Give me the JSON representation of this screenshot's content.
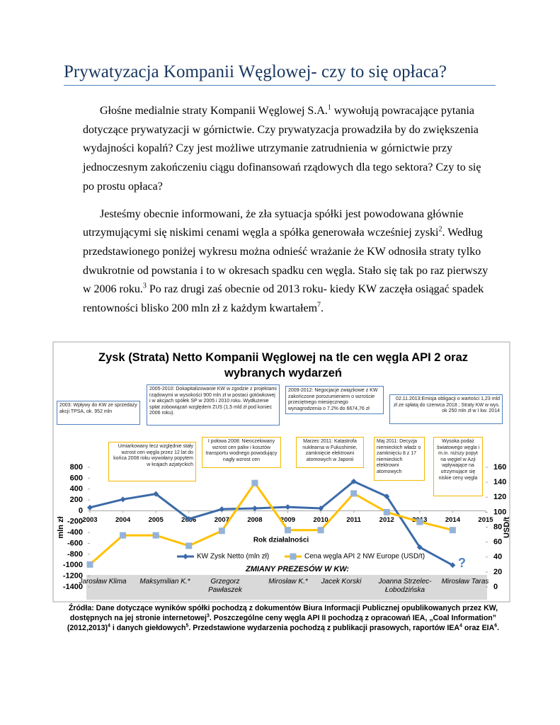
{
  "header": {
    "title": "Prywatyzacja Kompanii Węglowej- czy to się opłaca?"
  },
  "paragraphs": [
    [
      {
        "text": "Głośne medialnie straty Kompanii Węglowej S.A."
      },
      {
        "sup": "1"
      },
      {
        "text": " wywołują powracające pytania dotyczące prywatyzacji w górnictwie. Czy prywatyzacja prowadziła by do zwiększenia wydajności kopalń? Czy jest możliwe utrzymanie zatrudnienia w górnictwie przy jednoczesnym zakończeniu ciągu dofinansowań rządowych dla tego sektora? Czy to się po prostu opłaca?"
      }
    ],
    [
      {
        "text": "Jesteśmy obecnie informowani, że zła sytuacja spółki jest powodowana głównie utrzymującymi się niskimi cenami węgla a spółka generowała wcześniej zyski"
      },
      {
        "sup": "2"
      },
      {
        "text": ". Według przedstawionego poniżej wykresu można  odnieść  wrażanie że KW odnosiła straty tylko dwukrotnie od powstania i to w okresach spadku cen węgla. Stało się tak po raz pierwszy w 2006 roku."
      },
      {
        "sup": "3"
      },
      {
        "text": " Po raz drugi zaś obecnie od 2013 roku- kiedy KW zaczęła osiągać spadek rentowności blisko 200 mln zł z każdym kwartałem"
      },
      {
        "sup": "7"
      },
      {
        "text": "."
      }
    ]
  ],
  "chart_data": {
    "type": "line",
    "title": "Zysk (Strata) Netto Kompanii Węglowej na tle cen węgla API 2 oraz wybranych wydarzeń",
    "x_label": "Rok działalności",
    "y_label": "mln zł",
    "y2_label": "USD/t",
    "x": [
      2003,
      2004,
      2005,
      2006,
      2007,
      2008,
      2009,
      2010,
      2011,
      2012,
      2013,
      2014
    ],
    "xlim": [
      2003,
      2015
    ],
    "xticks": [
      2003,
      2004,
      2005,
      2006,
      2007,
      2008,
      2009,
      2010,
      2011,
      2012,
      2013,
      2014,
      2015
    ],
    "ylim": [
      -1400,
      800
    ],
    "yticks": [
      -1400,
      -1200,
      -1000,
      -800,
      -600,
      -400,
      -200,
      0,
      200,
      400,
      600,
      800
    ],
    "y2lim": [
      0,
      160
    ],
    "y2ticks": [
      0,
      20,
      40,
      60,
      80,
      100,
      120,
      140,
      160
    ],
    "series": [
      {
        "name": "KW Zysk Netto (mln zł)",
        "color": "#3c6aa8",
        "marker_color": "#3c6aa8",
        "values": [
          60,
          210,
          310,
          -150,
          30,
          45,
          70,
          45,
          540,
          265,
          -670,
          -1000
        ]
      },
      {
        "name": "Cena węgla API 2 NW Europe (USD/t)",
        "color": "#ffc000",
        "marker_color": "#95b3d7",
        "axis": "y2",
        "values": [
          30,
          69,
          69,
          55,
          75,
          139,
          76,
          76,
          125,
          100,
          87,
          76
        ]
      }
    ],
    "note": "?",
    "annotations": [
      {
        "text": "2003: Wpływy  do KW ze sprzedaży akcji TPSA, ok. 952 mln",
        "color": "#4f81bd"
      },
      {
        "text": "2005-2010: Dokapitalizowanie KW w zgodzie z projektami rządowymi w wysokości 900 mln zł w postaci gotówkowej i w akcjach spółek SP w 2005 i 2010 roku. Wydłużenie spłat zobowiązań względem ZUS (1,5 mld zł pod koniec 2006 roku).",
        "color": "#4f81bd"
      },
      {
        "text": "2009-2012: Negocjacje związkowe z KW zakończone porozumieniem o wzroście przeciętnego miesięcznego wynagrodzenia o 7.2% do 6674,76 zł",
        "color": "#4f81bd"
      },
      {
        "text": "02.11.2013:Emisja obligacji o wartości 1,23 mld zł ze spłatą do czerwca 2018 ; Straty KW w wys. ok 250 mln zł w I kw. 2014",
        "color": "#4f81bd"
      },
      {
        "text": "Umiarkowany lecz względnie stały wzrost cen węgla przez 12 lat do końca 2008 roku wywołany popytem  w krajach azjatyckich",
        "color": "#f5b700"
      },
      {
        "text": "I połowa 2008: Nieoczekiwany wzrost cen paliw i kosztów transportu wodnego powodujący nagły wzrost  cen",
        "color": "#f5b700"
      },
      {
        "text": "Marzec 2011: Katastrofa nuklearna w Fukushimie, zamknięcie elektrowni atomowych w Japonii",
        "color": "#f5b700"
      },
      {
        "text": "Maj 2011: Decyzja niemieckich władz o zamknięciu 8 z 17 niemieckich elektrowni atomowych",
        "color": "#f5b700"
      },
      {
        "text": "Wysoka podaż światowego węgla i m.in. niższy popyt na węgiel w Azji wpływające na utrzymujące się niskie ceny węgla",
        "color": "#f5b700"
      }
    ],
    "management_title": "ZMIANY PREZESÓW W KW:",
    "management": [
      "Jarosław Klima",
      "Maksymilian K.*",
      "Grzegorz Pawłaszek",
      "Mirosław K.*",
      "Jacek Korski",
      "Joanna Strzelec-Łobodzińska",
      "Mirosław Taras"
    ]
  },
  "sources": [
    {
      "text": "Źródła: Dane dotyczące wyników spółki pochodzą z dokumentów Biura Informacji Publicznej opublikowanych przez KW, dostępnych na jej stronie internetowej"
    },
    {
      "sup": "3"
    },
    {
      "text": ". Poszczególne ceny węgla API II pochodzą z opracowań IEA, „Coal Information” (2012,2013)"
    },
    {
      "sup": "4"
    },
    {
      "text": " i danych giełdowych"
    },
    {
      "sup": "5"
    },
    {
      "text": ". Przedstawione wydarzenia pochodzą z publikacji prasowych, raportów IEA"
    },
    {
      "sup": "4"
    },
    {
      "text": " oraz EIA"
    },
    {
      "sup": "6"
    },
    {
      "text": "."
    }
  ]
}
